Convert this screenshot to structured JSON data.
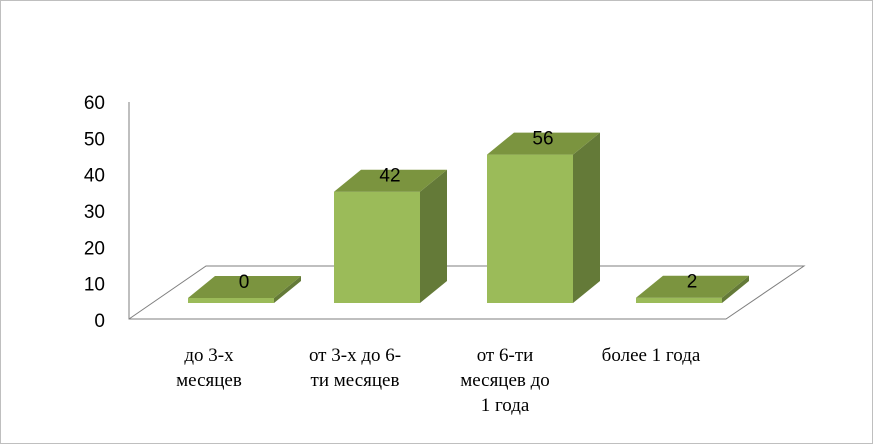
{
  "chart_data": {
    "type": "bar",
    "style": "3d-column",
    "categories": [
      [
        "до 3-х",
        "месяцев"
      ],
      [
        "от 3-х до 6-",
        "ти месяцев"
      ],
      [
        "от 6-ти",
        "месяцев до",
        "1 года"
      ],
      [
        "более 1 года"
      ]
    ],
    "values": [
      0,
      42,
      56,
      2
    ],
    "data_labels": [
      "0",
      "42",
      "56",
      "2"
    ],
    "ylim": [
      0,
      60
    ],
    "yticks": [
      "0",
      "10",
      "20",
      "30",
      "40",
      "50",
      "60"
    ],
    "grid": false,
    "legend": "none",
    "colors": {
      "front": "#9bbb59",
      "side": "#647a38",
      "top": "#7b943f",
      "floor_edge": "#7f7f7f"
    }
  }
}
